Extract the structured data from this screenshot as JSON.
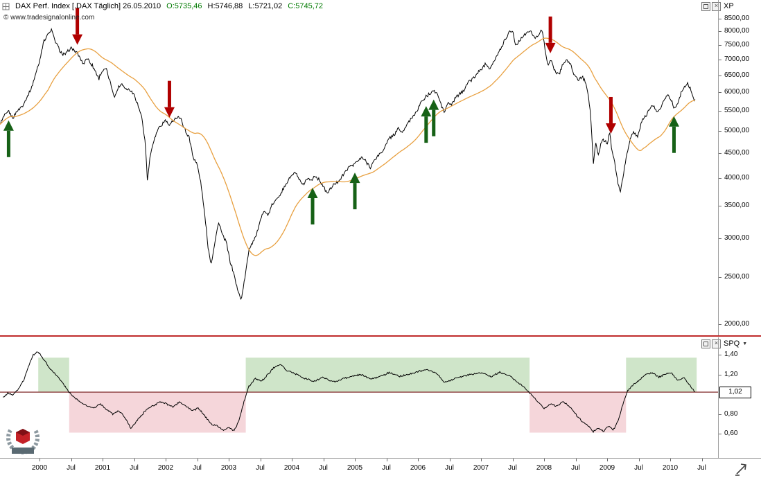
{
  "window": {
    "main_panel": {
      "title": "DAX Perf. Index [.DAX  Täglich] 26.05.2010",
      "ohlc": {
        "open": "O:5735,46",
        "high": "H:5746,88",
        "low": "L:5721,02",
        "close": "C:5745,72"
      },
      "watermark": "© www.tradesignalonline.com",
      "indicator_label": "XP"
    },
    "lower_panel": {
      "indicator_label": "SPQ"
    }
  },
  "icons": {
    "close_glyph": "×",
    "dropdown_glyph": "▼"
  },
  "colors": {
    "price": "#000000",
    "ma": "#e8a040",
    "buy_arrow": "#166116",
    "sell_arrow": "#b00000",
    "zone_green": "#cfe5c9",
    "zone_pink": "#f5d6da",
    "threshold_line": "#8a3a3a",
    "separator": "#bf2b2b",
    "ohlc_green": "#007a00"
  },
  "axes": {
    "main_y_ticks": [
      "8500,00",
      "8000,00",
      "7500,00",
      "7000,00",
      "6500,00",
      "6000,00",
      "5500,00",
      "5000,00",
      "4500,00",
      "4000,00",
      "3500,00",
      "3000,00",
      "2500,00",
      "2000,00"
    ],
    "lower_y_ticks": [
      {
        "label": "1,40",
        "value": 1.4
      },
      {
        "label": "1,20",
        "value": 1.2
      },
      {
        "label": "0,80",
        "value": 0.8
      },
      {
        "label": "0,60",
        "value": 0.6
      }
    ],
    "lower_marker": {
      "label": "1,02",
      "value": 1.02
    },
    "x_ticks": [
      {
        "label": "2000",
        "t": 2000
      },
      {
        "label": "Jul",
        "t": 2000.5
      },
      {
        "label": "2001",
        "t": 2001
      },
      {
        "label": "Jul",
        "t": 2001.5
      },
      {
        "label": "2002",
        "t": 2002
      },
      {
        "label": "Jul",
        "t": 2002.5
      },
      {
        "label": "2003",
        "t": 2003
      },
      {
        "label": "Jul",
        "t": 2003.5
      },
      {
        "label": "2004",
        "t": 2004
      },
      {
        "label": "Jul",
        "t": 2004.5
      },
      {
        "label": "2005",
        "t": 2005
      },
      {
        "label": "Jul",
        "t": 2005.5
      },
      {
        "label": "2006",
        "t": 2006
      },
      {
        "label": "Jul",
        "t": 2006.5
      },
      {
        "label": "2007",
        "t": 2007
      },
      {
        "label": "Jul",
        "t": 2007.5
      },
      {
        "label": "2008",
        "t": 2008
      },
      {
        "label": "Jul",
        "t": 2008.5
      },
      {
        "label": "2009",
        "t": 2009
      },
      {
        "label": "Jul",
        "t": 2009.5
      },
      {
        "label": "2010",
        "t": 2010
      },
      {
        "label": "Jul",
        "t": 2010.5
      }
    ]
  },
  "chart_data": [
    {
      "type": "line",
      "title": "DAX Perf. Index (.DAX) daily close with moving average and XP buy/sell arrows",
      "x_unit": "decimal_year",
      "xlim": [
        1999.37,
        2010.76
      ],
      "y_axis": {
        "scale": "log",
        "top": 8500,
        "bottom": 2000
      },
      "series": [
        {
          "name": "DAX Perf. Index close",
          "x": [
            1999.37,
            1999.44,
            1999.51,
            1999.58,
            1999.65,
            1999.72,
            1999.8,
            1999.87,
            1999.94,
            2000.0,
            2000.06,
            2000.12,
            2000.19,
            2000.25,
            2000.31,
            2000.37,
            2000.44,
            2000.5,
            2000.56,
            2000.62,
            2000.69,
            2000.75,
            2000.81,
            2000.87,
            2000.94,
            2001.0,
            2001.06,
            2001.12,
            2001.19,
            2001.25,
            2001.31,
            2001.37,
            2001.44,
            2001.5,
            2001.56,
            2001.62,
            2001.68,
            2001.71,
            2001.75,
            2001.81,
            2001.87,
            2001.94,
            2002.0,
            2002.06,
            2002.12,
            2002.19,
            2002.25,
            2002.31,
            2002.37,
            2002.44,
            2002.5,
            2002.56,
            2002.62,
            2002.67,
            2002.72,
            2002.78,
            2002.84,
            2002.9,
            2002.96,
            2003.02,
            2003.08,
            2003.14,
            2003.2,
            2003.26,
            2003.32,
            2003.38,
            2003.44,
            2003.5,
            2003.56,
            2003.62,
            2003.68,
            2003.75,
            2003.81,
            2003.87,
            2003.94,
            2004.0,
            2004.06,
            2004.12,
            2004.19,
            2004.25,
            2004.31,
            2004.37,
            2004.44,
            2004.5,
            2004.56,
            2004.62,
            2004.69,
            2004.75,
            2004.81,
            2004.87,
            2004.94,
            2005.0,
            2005.06,
            2005.12,
            2005.19,
            2005.25,
            2005.31,
            2005.37,
            2005.44,
            2005.5,
            2005.56,
            2005.62,
            2005.69,
            2005.75,
            2005.81,
            2005.87,
            2005.94,
            2006.0,
            2006.06,
            2006.12,
            2006.19,
            2006.25,
            2006.31,
            2006.37,
            2006.42,
            2006.48,
            2006.54,
            2006.6,
            2006.66,
            2006.72,
            2006.78,
            2006.84,
            2006.9,
            2006.96,
            2007.02,
            2007.08,
            2007.14,
            2007.2,
            2007.26,
            2007.32,
            2007.38,
            2007.44,
            2007.5,
            2007.55,
            2007.61,
            2007.67,
            2007.73,
            2007.79,
            2007.85,
            2007.91,
            2007.97,
            2008.02,
            2008.06,
            2008.12,
            2008.18,
            2008.24,
            2008.3,
            2008.36,
            2008.42,
            2008.48,
            2008.54,
            2008.6,
            2008.66,
            2008.7,
            2008.74,
            2008.78,
            2008.82,
            2008.86,
            2008.9,
            2008.94,
            2009.0,
            2009.04,
            2009.08,
            2009.12,
            2009.17,
            2009.21,
            2009.25,
            2009.31,
            2009.37,
            2009.43,
            2009.49,
            2009.55,
            2009.61,
            2009.67,
            2009.73,
            2009.79,
            2009.85,
            2009.91,
            2009.97,
            2010.02,
            2010.07,
            2010.12,
            2010.17,
            2010.22,
            2010.27,
            2010.31,
            2010.34,
            2010.37,
            2010.4
          ],
          "y": [
            5150,
            5350,
            5480,
            5300,
            5500,
            5600,
            5850,
            6100,
            6550,
            6950,
            7600,
            7850,
            8060,
            7650,
            7350,
            7150,
            7250,
            7400,
            7300,
            7150,
            6850,
            7050,
            6900,
            6700,
            6400,
            6650,
            6700,
            6300,
            5850,
            6150,
            6250,
            6100,
            6050,
            5950,
            5650,
            5350,
            4650,
            3950,
            4400,
            4750,
            5000,
            5150,
            5250,
            5100,
            5250,
            5350,
            5250,
            5000,
            4850,
            4400,
            4250,
            3900,
            3350,
            2900,
            2650,
            2950,
            3250,
            3050,
            2950,
            2700,
            2550,
            2350,
            2250,
            2500,
            2850,
            2950,
            3050,
            3250,
            3450,
            3350,
            3500,
            3600,
            3700,
            3800,
            3950,
            4050,
            4100,
            3950,
            3850,
            4000,
            3950,
            4050,
            3950,
            3850,
            3700,
            3800,
            3900,
            3950,
            4050,
            4150,
            4250,
            4280,
            4350,
            4400,
            4300,
            4200,
            4350,
            4450,
            4550,
            4700,
            4850,
            4900,
            5050,
            4950,
            5100,
            5250,
            5400,
            5550,
            5750,
            5850,
            5950,
            6050,
            5950,
            5650,
            5450,
            5700,
            5650,
            5850,
            5950,
            6050,
            6250,
            6350,
            6450,
            6600,
            6750,
            6900,
            6700,
            6950,
            7150,
            7400,
            7700,
            7950,
            8050,
            7500,
            7650,
            7850,
            7950,
            8000,
            7750,
            7900,
            8050,
            7300,
            6850,
            6950,
            6600,
            6550,
            6850,
            7000,
            6850,
            6500,
            6350,
            6450,
            6300,
            5950,
            5350,
            4250,
            4700,
            4450,
            4700,
            4800,
            4700,
            4950,
            4500,
            4300,
            3900,
            3750,
            4000,
            4450,
            4850,
            4950,
            4850,
            5250,
            5350,
            5550,
            5650,
            5450,
            5600,
            5800,
            5950,
            5750,
            5550,
            5700,
            5950,
            6150,
            6250,
            6150,
            6000,
            5850,
            5745
          ]
        },
        {
          "name": "moving average (orange)",
          "note": "trailing ~200-day mean of the close series"
        }
      ],
      "signals": {
        "buy": [
          1999.51,
          2004.33,
          2005.0,
          2006.13,
          2006.25,
          2010.06
        ],
        "sell": [
          2000.6,
          2002.06,
          2008.1,
          2009.06
        ]
      }
    },
    {
      "type": "line",
      "title": "SPQ ratio oscillator with bull/bear zones",
      "x_unit": "decimal_year",
      "ylim": [
        0.52,
        1.47
      ],
      "threshold": 1.02,
      "x": [
        1999.42,
        1999.5,
        1999.58,
        1999.66,
        1999.74,
        1999.82,
        1999.9,
        1999.98,
        2000.06,
        2000.14,
        2000.22,
        2000.3,
        2000.38,
        2000.47,
        2000.56,
        2000.66,
        2000.76,
        2000.86,
        2000.96,
        2001.06,
        2001.16,
        2001.26,
        2001.36,
        2001.45,
        2001.52,
        2001.62,
        2001.72,
        2001.82,
        2001.92,
        2002.02,
        2002.12,
        2002.22,
        2002.32,
        2002.42,
        2002.52,
        2002.62,
        2002.72,
        2002.82,
        2002.92,
        2003.0,
        2003.08,
        2003.16,
        2003.24,
        2003.32,
        2003.42,
        2003.52,
        2003.62,
        2003.72,
        2003.82,
        2003.92,
        2004.05,
        2004.2,
        2004.35,
        2004.5,
        2004.65,
        2004.8,
        2004.95,
        2005.1,
        2005.25,
        2005.4,
        2005.55,
        2005.7,
        2005.85,
        2006.0,
        2006.15,
        2006.3,
        2006.42,
        2006.55,
        2006.7,
        2006.85,
        2007.0,
        2007.15,
        2007.3,
        2007.45,
        2007.58,
        2007.7,
        2007.79,
        2007.9,
        2008.0,
        2008.1,
        2008.2,
        2008.3,
        2008.4,
        2008.5,
        2008.6,
        2008.7,
        2008.78,
        2008.86,
        2008.94,
        2009.02,
        2009.1,
        2009.18,
        2009.25,
        2009.33,
        2009.42,
        2009.52,
        2009.62,
        2009.72,
        2009.82,
        2009.92,
        2010.02,
        2010.12,
        2010.22,
        2010.3,
        2010.36,
        2010.4
      ],
      "y": [
        0.97,
        1.01,
        0.99,
        1.05,
        1.13,
        1.27,
        1.4,
        1.43,
        1.36,
        1.28,
        1.22,
        1.17,
        1.1,
        1.02,
        0.96,
        0.91,
        0.88,
        0.86,
        0.9,
        0.85,
        0.8,
        0.83,
        0.76,
        0.65,
        0.71,
        0.79,
        0.86,
        0.89,
        0.92,
        0.9,
        0.87,
        0.92,
        0.88,
        0.83,
        0.86,
        0.78,
        0.7,
        0.68,
        0.63,
        0.66,
        0.63,
        0.72,
        0.92,
        1.08,
        1.16,
        1.13,
        1.2,
        1.27,
        1.3,
        1.24,
        1.21,
        1.16,
        1.13,
        1.17,
        1.12,
        1.15,
        1.18,
        1.2,
        1.15,
        1.18,
        1.22,
        1.18,
        1.2,
        1.23,
        1.25,
        1.21,
        1.12,
        1.15,
        1.18,
        1.2,
        1.22,
        1.18,
        1.22,
        1.19,
        1.12,
        1.06,
        1.0,
        0.92,
        0.86,
        0.9,
        0.88,
        0.92,
        0.88,
        0.8,
        0.72,
        0.68,
        0.62,
        0.66,
        0.62,
        0.68,
        0.64,
        0.74,
        0.9,
        1.04,
        1.1,
        1.15,
        1.2,
        1.22,
        1.17,
        1.2,
        1.22,
        1.14,
        1.17,
        1.1,
        1.05,
        1.02
      ],
      "regions": [
        {
          "zone": "bull",
          "from": 1999.98,
          "to": 2000.47
        },
        {
          "zone": "bear",
          "from": 2000.47,
          "to": 2003.27
        },
        {
          "zone": "bull",
          "from": 2003.27,
          "to": 2007.77
        },
        {
          "zone": "bear",
          "from": 2007.77,
          "to": 2009.3
        },
        {
          "zone": "bull",
          "from": 2009.3,
          "to": 2010.42
        }
      ]
    }
  ]
}
